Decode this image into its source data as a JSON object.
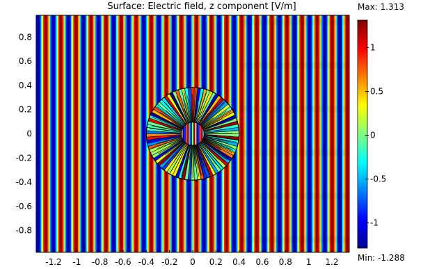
{
  "chart_data": {
    "type": "heatmap",
    "title": "Surface: Electric field, z component [V/m]",
    "xlabel": "",
    "ylabel": "",
    "xlim": [
      -1.35,
      1.35
    ],
    "ylim": [
      -0.98,
      0.98
    ],
    "x_ticks": [
      "-1.2",
      "-1",
      "-0.8",
      "-0.6",
      "-0.4",
      "-0.2",
      "0",
      "0.2",
      "0.4",
      "0.6",
      "0.8",
      "1",
      "1.2"
    ],
    "x_tick_values": [
      -1.2,
      -1,
      -0.8,
      -0.6,
      -0.4,
      -0.2,
      0,
      0.2,
      0.4,
      0.6,
      0.8,
      1,
      1.2
    ],
    "y_ticks": [
      "0.8",
      "0.6",
      "0.4",
      "0.2",
      "0",
      "-0.2",
      "-0.4",
      "-0.6",
      "-0.8"
    ],
    "y_tick_values": [
      0.8,
      0.6,
      0.4,
      0.2,
      0,
      -0.2,
      -0.4,
      -0.6,
      -0.8
    ],
    "colorbar": {
      "max_label": "Max: 1.313",
      "min_label": "Min: -1.288",
      "max": 1.313,
      "min": -1.288,
      "tick_labels": [
        "1",
        "0.5",
        "0",
        "-0.5",
        "-1"
      ],
      "tick_values": [
        1,
        0.5,
        0,
        -0.5,
        -1
      ],
      "colormap": [
        "#00008f",
        "#0000ff",
        "#00ffff",
        "#80ff80",
        "#ffff00",
        "#ff0000",
        "#800000"
      ]
    },
    "field": {
      "pattern": "plane wave along x",
      "wave_period": 0.13,
      "cloak_outer_radius": 0.4,
      "cloak_inner_radius": 0.1,
      "cloak_center": [
        0,
        0
      ]
    }
  }
}
